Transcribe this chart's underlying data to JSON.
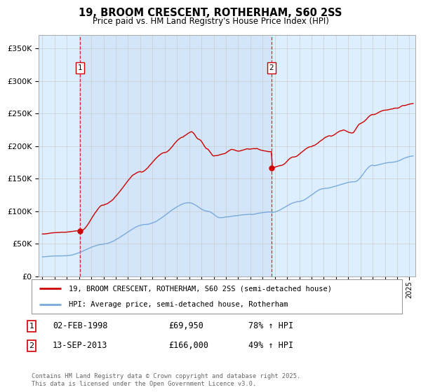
{
  "title": "19, BROOM CRESCENT, ROTHERHAM, S60 2SS",
  "subtitle": "Price paid vs. HM Land Registry's House Price Index (HPI)",
  "legend_line1": "19, BROOM CRESCENT, ROTHERHAM, S60 2SS (semi-detached house)",
  "legend_line2": "HPI: Average price, semi-detached house, Rotherham",
  "annotation1": {
    "label": "1",
    "date": "02-FEB-1998",
    "price": "£69,950",
    "change": "78% ↑ HPI"
  },
  "annotation2": {
    "label": "2",
    "date": "13-SEP-2013",
    "price": "£166,000",
    "change": "49% ↑ HPI"
  },
  "footnote": "Contains HM Land Registry data © Crown copyright and database right 2025.\nThis data is licensed under the Open Government Licence v3.0.",
  "red_color": "#cc0000",
  "blue_color": "#7aaadd",
  "bg_fill_color": "#ddeeff",
  "background_color": "#ffffff",
  "grid_color": "#cccccc",
  "ylim": [
    0,
    370000
  ],
  "yticks": [
    0,
    50000,
    100000,
    150000,
    200000,
    250000,
    300000,
    350000
  ],
  "xlim_start": 1994.7,
  "xlim_end": 2025.5,
  "sale1_year": 1998.09,
  "sale1_price": 69950,
  "sale2_year": 2013.71,
  "sale2_price": 166000
}
